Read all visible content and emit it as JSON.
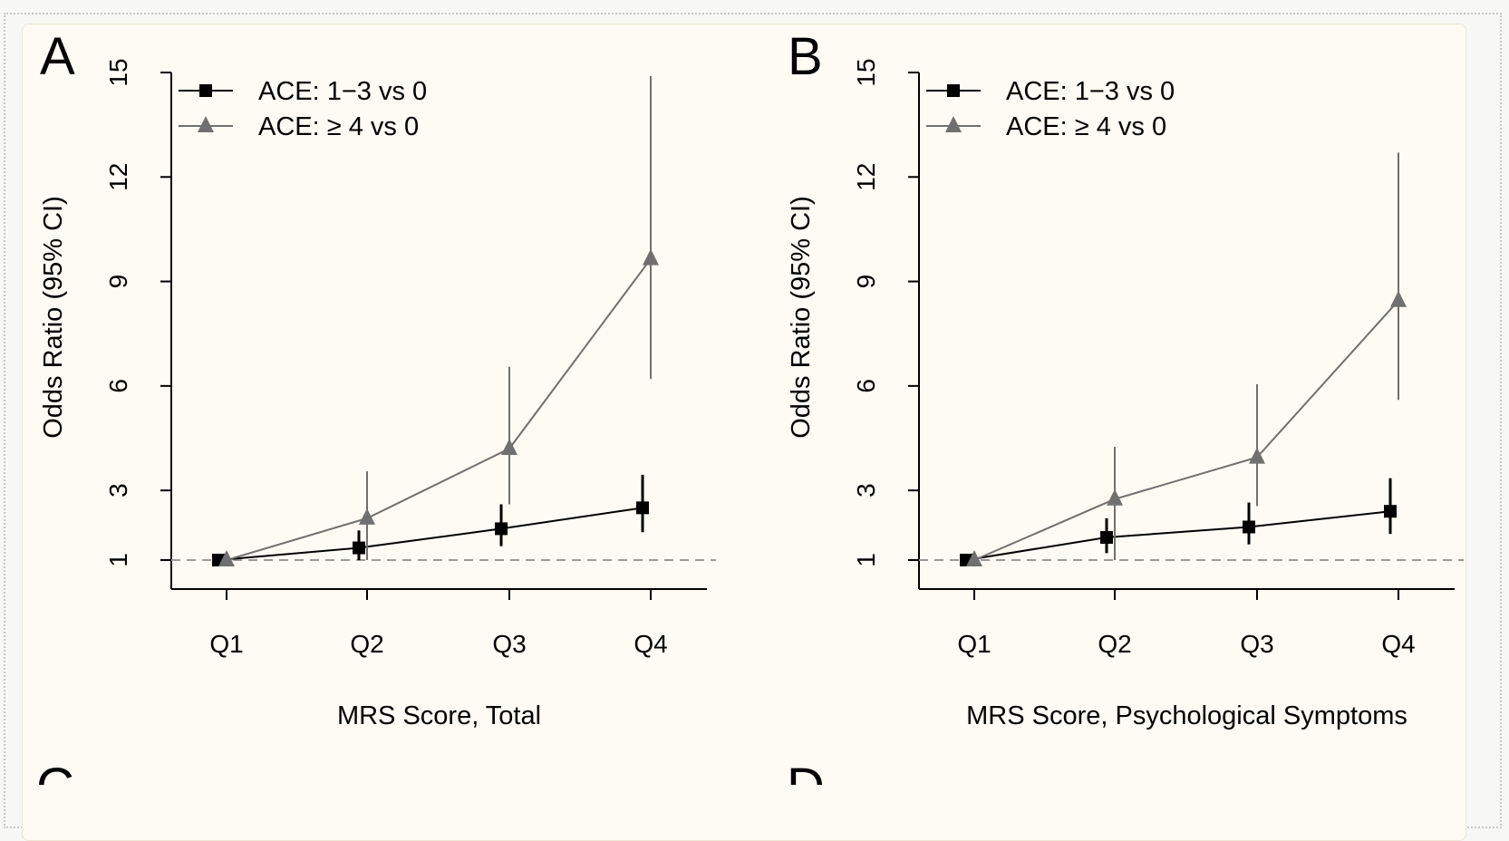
{
  "chart_data": [
    {
      "panel_letter": "A",
      "type": "line",
      "categories": [
        "Q1",
        "Q2",
        "Q3",
        "Q4"
      ],
      "xlabel": "MRS Score, Total",
      "ylabel": "Odds Ratio (95% CI)",
      "yticks": [
        1,
        3,
        6,
        9,
        12,
        15
      ],
      "ylim": [
        0.2,
        15
      ],
      "reference_line": 1,
      "legend_position": "top-left",
      "series": [
        {
          "name": "ACE: 1−3 vs 0",
          "marker": "square",
          "color": "#000000",
          "values": [
            1.0,
            1.35,
            1.9,
            2.5
          ],
          "lower": [
            1.0,
            1.0,
            1.4,
            1.8
          ],
          "upper": [
            1.0,
            1.85,
            2.6,
            3.45
          ]
        },
        {
          "name": "ACE: ≥ 4 vs 0",
          "marker": "triangle",
          "color": "#707070",
          "values": [
            1.0,
            2.2,
            4.2,
            9.65
          ],
          "lower": [
            1.0,
            1.0,
            2.6,
            6.2
          ],
          "upper": [
            1.0,
            3.55,
            6.55,
            14.9
          ]
        }
      ]
    },
    {
      "panel_letter": "B",
      "type": "line",
      "categories": [
        "Q1",
        "Q2",
        "Q3",
        "Q4"
      ],
      "xlabel": "MRS Score, Psychological Symptoms",
      "ylabel": "Odds Ratio (95% CI)",
      "yticks": [
        1,
        3,
        6,
        9,
        12,
        15
      ],
      "ylim": [
        0.2,
        15
      ],
      "reference_line": 1,
      "legend_position": "top-left",
      "series": [
        {
          "name": "ACE: 1−3 vs 0",
          "marker": "square",
          "color": "#000000",
          "values": [
            1.0,
            1.65,
            1.95,
            2.4
          ],
          "lower": [
            1.0,
            1.2,
            1.45,
            1.75
          ],
          "upper": [
            1.0,
            2.2,
            2.65,
            3.35
          ]
        },
        {
          "name": "ACE: ≥ 4 vs 0",
          "marker": "triangle",
          "color": "#707070",
          "values": [
            1.0,
            2.75,
            3.95,
            8.45
          ],
          "lower": [
            1.0,
            1.0,
            2.55,
            5.6
          ],
          "upper": [
            1.0,
            4.25,
            6.05,
            12.7
          ]
        }
      ]
    }
  ],
  "partial_panels": [
    "C",
    "D"
  ]
}
